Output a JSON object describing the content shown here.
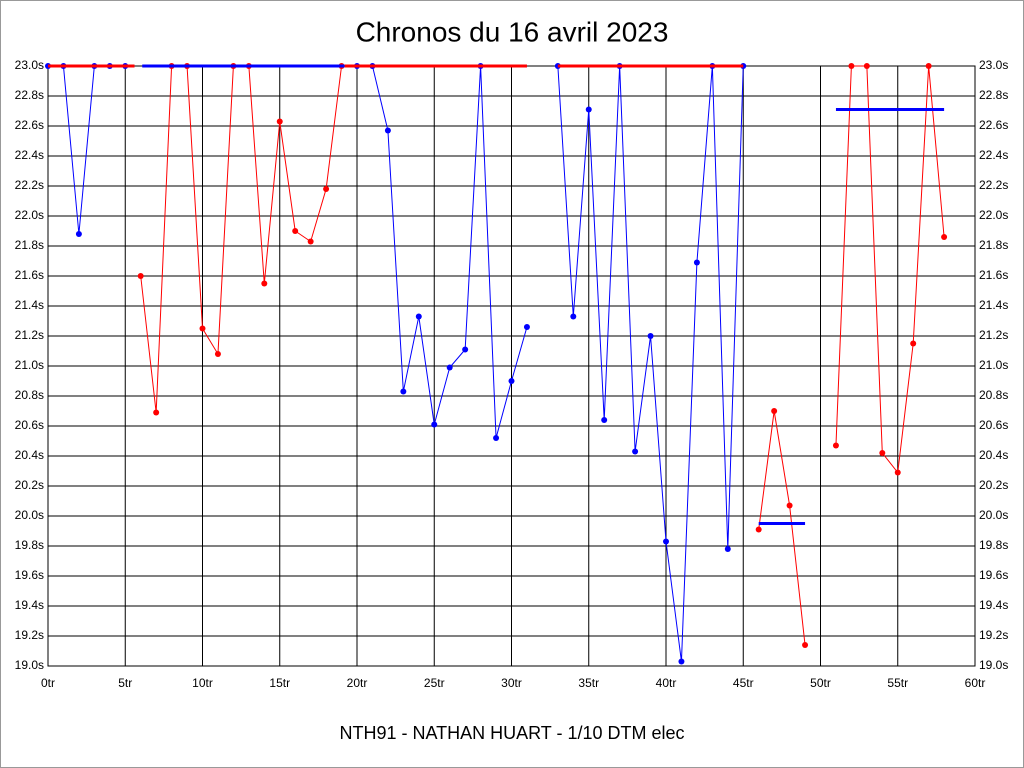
{
  "chart_data": {
    "type": "line",
    "title": "Chronos du 16 avril 2023",
    "subtitle": "NTH91 - NATHAN HUART - 1/10 DTM elec",
    "xlim": [
      0,
      60
    ],
    "xticks": [
      {
        "value": 0,
        "label": "0tr"
      },
      {
        "value": 5,
        "label": "5tr"
      },
      {
        "value": 10,
        "label": "10tr"
      },
      {
        "value": 15,
        "label": "15tr"
      },
      {
        "value": 20,
        "label": "20tr"
      },
      {
        "value": 25,
        "label": "25tr"
      },
      {
        "value": 30,
        "label": "30tr"
      },
      {
        "value": 35,
        "label": "35tr"
      },
      {
        "value": 40,
        "label": "40tr"
      },
      {
        "value": 45,
        "label": "45tr"
      },
      {
        "value": 50,
        "label": "50tr"
      },
      {
        "value": 55,
        "label": "55tr"
      },
      {
        "value": 60,
        "label": "60tr"
      }
    ],
    "ylim": [
      19.0,
      23.0
    ],
    "yticks": [
      {
        "value": 19.0,
        "label": "19.0s"
      },
      {
        "value": 19.2,
        "label": "19.2s"
      },
      {
        "value": 19.4,
        "label": "19.4s"
      },
      {
        "value": 19.6,
        "label": "19.6s"
      },
      {
        "value": 19.8,
        "label": "19.8s"
      },
      {
        "value": 20.0,
        "label": "20.0s"
      },
      {
        "value": 20.2,
        "label": "20.2s"
      },
      {
        "value": 20.4,
        "label": "20.4s"
      },
      {
        "value": 20.6,
        "label": "20.6s"
      },
      {
        "value": 20.8,
        "label": "20.8s"
      },
      {
        "value": 21.0,
        "label": "21.0s"
      },
      {
        "value": 21.2,
        "label": "21.2s"
      },
      {
        "value": 21.4,
        "label": "21.4s"
      },
      {
        "value": 21.6,
        "label": "21.6s"
      },
      {
        "value": 21.8,
        "label": "21.8s"
      },
      {
        "value": 22.0,
        "label": "22.0s"
      },
      {
        "value": 22.2,
        "label": "22.2s"
      },
      {
        "value": 22.4,
        "label": "22.4s"
      },
      {
        "value": 22.6,
        "label": "22.6s"
      },
      {
        "value": 22.8,
        "label": "22.8s"
      },
      {
        "value": 23.0,
        "label": "23.0s"
      }
    ],
    "grid": true,
    "series": [
      {
        "color": "#0000ff",
        "markers": true,
        "line_width": 1,
        "x": [
          0,
          1,
          2,
          3,
          4,
          5
        ],
        "values": [
          23.0,
          23.0,
          21.88,
          23.0,
          23.0,
          23.0
        ]
      },
      {
        "color": "#ff0000",
        "markers": false,
        "line_width": 3,
        "x": [
          0,
          5.6
        ],
        "values": [
          23.0,
          23.0
        ]
      },
      {
        "color": "#ff0000",
        "markers": true,
        "line_width": 1,
        "x": [
          6,
          7,
          8,
          9,
          10,
          11,
          12,
          13,
          14,
          15,
          16,
          17,
          18,
          19
        ],
        "values": [
          21.6,
          20.69,
          23.0,
          23.0,
          21.25,
          21.08,
          23.0,
          23.0,
          21.55,
          22.63,
          21.9,
          21.83,
          22.18,
          23.0
        ]
      },
      {
        "color": "#0000ff",
        "markers": false,
        "line_width": 3,
        "x": [
          6.1,
          19.2
        ],
        "values": [
          23.0,
          23.0
        ]
      },
      {
        "color": "#0000ff",
        "markers": true,
        "line_width": 1,
        "x": [
          20,
          21,
          22,
          23,
          24,
          25,
          26,
          27,
          28,
          29,
          30,
          31
        ],
        "values": [
          23.0,
          23.0,
          22.57,
          20.83,
          21.33,
          20.61,
          20.99,
          21.11,
          23.0,
          20.52,
          20.9,
          21.26
        ]
      },
      {
        "color": "#ff0000",
        "markers": false,
        "line_width": 3,
        "x": [
          19.2,
          31
        ],
        "values": [
          23.0,
          23.0
        ]
      },
      {
        "color": "#0000ff",
        "markers": true,
        "line_width": 1,
        "x": [
          33,
          34,
          35,
          36,
          37,
          38,
          39,
          40,
          41,
          42,
          43,
          44,
          45
        ],
        "values": [
          23.0,
          21.33,
          22.71,
          20.64,
          23.0,
          20.43,
          21.2,
          19.83,
          19.03,
          21.69,
          23.0,
          19.78,
          23.0
        ]
      },
      {
        "color": "#ff0000",
        "markers": false,
        "line_width": 3,
        "x": [
          33,
          45
        ],
        "values": [
          23.0,
          23.0
        ]
      },
      {
        "color": "#ff0000",
        "markers": true,
        "line_width": 1,
        "x": [
          46,
          47,
          48,
          49
        ],
        "values": [
          19.91,
          20.7,
          20.07,
          19.14
        ]
      },
      {
        "color": "#0000ff",
        "markers": false,
        "line_width": 3,
        "x": [
          46,
          49
        ],
        "values": [
          19.95,
          19.95
        ]
      },
      {
        "color": "#ff0000",
        "markers": true,
        "line_width": 1,
        "x": [
          51,
          52,
          53,
          54,
          55,
          56,
          57,
          58
        ],
        "values": [
          20.47,
          23.0,
          23.0,
          20.42,
          20.29,
          21.15,
          23.0,
          21.86
        ]
      },
      {
        "color": "#0000ff",
        "markers": false,
        "line_width": 3,
        "x": [
          51,
          58
        ],
        "values": [
          22.71,
          22.71
        ]
      }
    ]
  }
}
